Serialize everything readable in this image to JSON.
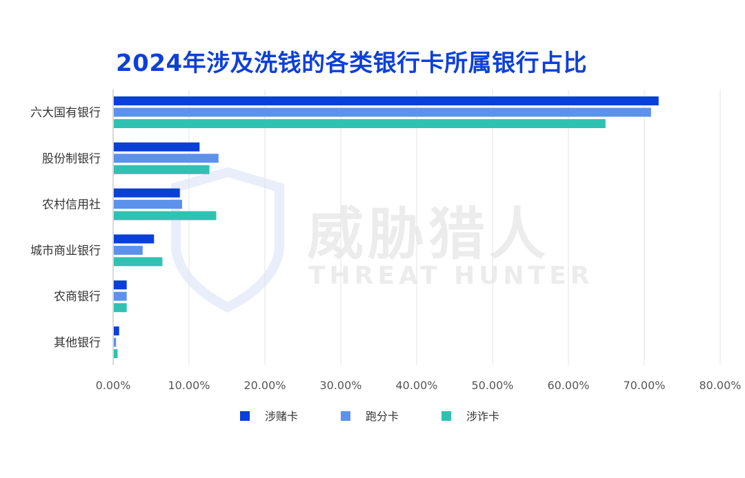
{
  "chart_data": {
    "type": "bar",
    "orientation": "horizontal",
    "title": "2024年涉及洗钱的各类银行卡所属银行占比",
    "categories": [
      "六大国有银行",
      "股份制银行",
      "农村信用社",
      "城市商业银行",
      "农商银行",
      "其他银行"
    ],
    "series": [
      {
        "name": "涉赌卡",
        "color": "#0a3fd8",
        "values": [
          71.8,
          11.3,
          8.7,
          5.3,
          1.7,
          0.7
        ]
      },
      {
        "name": "跑分卡",
        "color": "#5d92ec",
        "values": [
          70.8,
          13.8,
          9.0,
          3.8,
          1.7,
          0.3
        ]
      },
      {
        "name": "涉诈卡",
        "color": "#2fc2b2",
        "values": [
          64.8,
          12.6,
          13.5,
          6.4,
          1.7,
          0.5
        ]
      }
    ],
    "x_ticks": [
      "0.00%",
      "10.00%",
      "20.00%",
      "30.00%",
      "40.00%",
      "50.00%",
      "60.00%",
      "70.00%",
      "80.00%"
    ],
    "xlim": [
      0,
      80
    ],
    "xlabel": "",
    "ylabel": "",
    "grid": true,
    "legend": "bottom"
  },
  "watermark": {
    "cn": "威胁猎人",
    "en": "THREAT HUNTER"
  }
}
